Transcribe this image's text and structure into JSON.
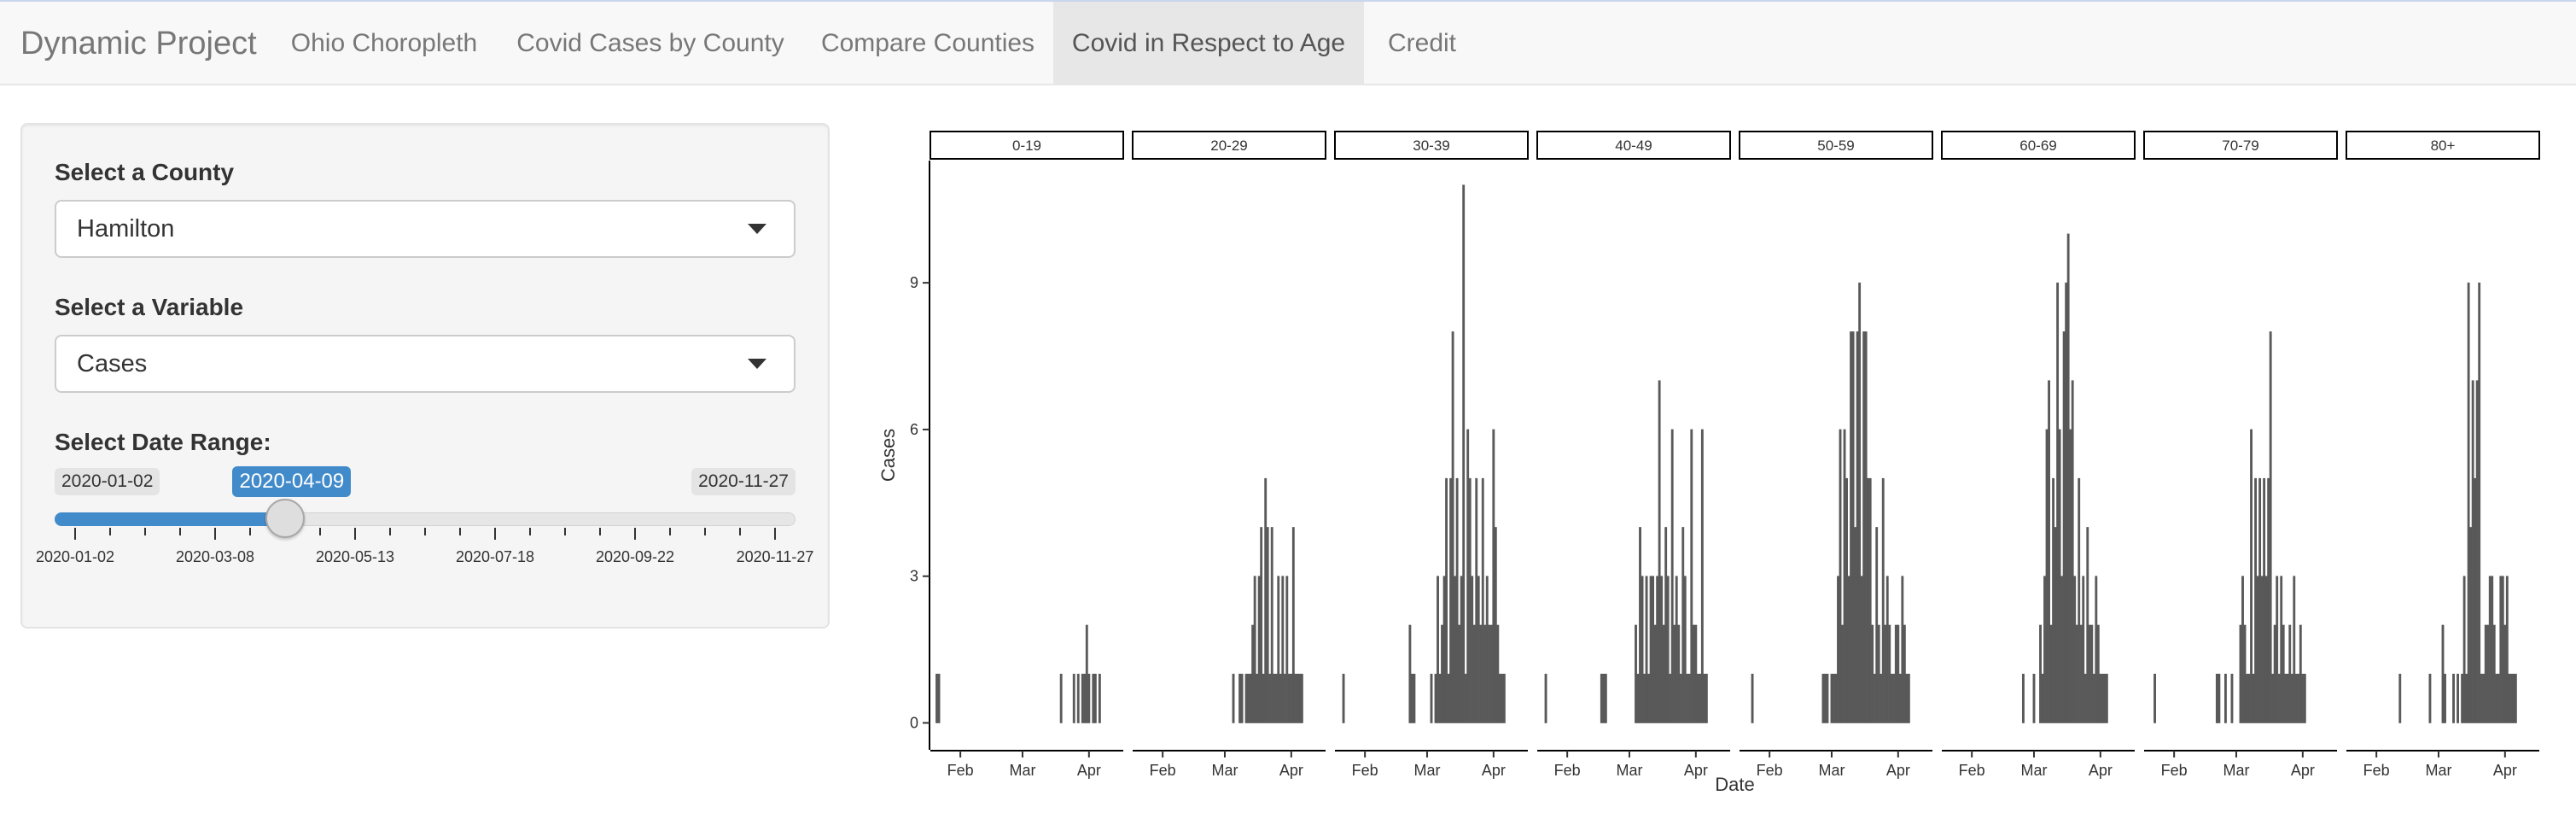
{
  "navbar": {
    "brand": "Dynamic Project",
    "tabs": [
      {
        "label": "Ohio Choropleth",
        "active": false
      },
      {
        "label": "Covid Cases by County",
        "active": false
      },
      {
        "label": "Compare Counties",
        "active": false
      },
      {
        "label": "Covid in Respect to Age",
        "active": true
      },
      {
        "label": "Credit",
        "active": false
      }
    ]
  },
  "sidebar": {
    "county": {
      "label": "Select a County",
      "value": "Hamilton"
    },
    "variable": {
      "label": "Select a Variable",
      "value": "Cases"
    },
    "date_range": {
      "label": "Select Date Range:",
      "min": "2020-01-02",
      "max": "2020-11-27",
      "current": "2020-04-09",
      "current_fraction": 0.3006,
      "grid_labels": [
        "2020-01-02",
        "2020-03-08",
        "2020-05-13",
        "2020-07-18",
        "2020-09-22",
        "2020-11-27"
      ]
    }
  },
  "chart_data": {
    "type": "bar",
    "facet_by": "age group",
    "xlabel": "Date",
    "ylabel": "Cases",
    "x_range": [
      "2020-01-18",
      "2020-04-17"
    ],
    "ylim": [
      -0.55,
      11.5
    ],
    "yticks": [
      0,
      3,
      6,
      9
    ],
    "xticks": [
      {
        "label": "Feb",
        "date": "2020-02-01"
      },
      {
        "label": "Mar",
        "date": "2020-03-01"
      },
      {
        "label": "Apr",
        "date": "2020-04-01"
      }
    ],
    "bar_color": "#595959",
    "facets": [
      {
        "name": "0-19",
        "points": [
          [
            "2020-01-21",
            1
          ],
          [
            "2020-01-22",
            1
          ],
          [
            "2020-03-19",
            1
          ],
          [
            "2020-03-25",
            1
          ],
          [
            "2020-03-27",
            1
          ],
          [
            "2020-03-29",
            1
          ],
          [
            "2020-03-30",
            1
          ],
          [
            "2020-03-31",
            2
          ],
          [
            "2020-04-01",
            1
          ],
          [
            "2020-04-03",
            1
          ],
          [
            "2020-04-04",
            1
          ],
          [
            "2020-04-06",
            1
          ]
        ]
      },
      {
        "name": "20-29",
        "points": [
          [
            "2020-03-05",
            1
          ],
          [
            "2020-03-08",
            1
          ],
          [
            "2020-03-09",
            1
          ],
          [
            "2020-03-11",
            1
          ],
          [
            "2020-03-12",
            1
          ],
          [
            "2020-03-13",
            1
          ],
          [
            "2020-03-14",
            2
          ],
          [
            "2020-03-15",
            3
          ],
          [
            "2020-03-16",
            1
          ],
          [
            "2020-03-17",
            3
          ],
          [
            "2020-03-18",
            4
          ],
          [
            "2020-03-19",
            1
          ],
          [
            "2020-03-20",
            5
          ],
          [
            "2020-03-21",
            4
          ],
          [
            "2020-03-22",
            1
          ],
          [
            "2020-03-23",
            4
          ],
          [
            "2020-03-24",
            1
          ],
          [
            "2020-03-25",
            1
          ],
          [
            "2020-03-26",
            3
          ],
          [
            "2020-03-27",
            1
          ],
          [
            "2020-03-28",
            3
          ],
          [
            "2020-03-29",
            1
          ],
          [
            "2020-03-30",
            3
          ],
          [
            "2020-03-31",
            1
          ],
          [
            "2020-04-01",
            1
          ],
          [
            "2020-04-02",
            4
          ],
          [
            "2020-04-03",
            1
          ],
          [
            "2020-04-04",
            1
          ],
          [
            "2020-04-05",
            1
          ],
          [
            "2020-04-06",
            1
          ]
        ]
      },
      {
        "name": "30-39",
        "points": [
          [
            "2020-01-22",
            1
          ],
          [
            "2020-02-22",
            2
          ],
          [
            "2020-02-23",
            1
          ],
          [
            "2020-02-24",
            1
          ],
          [
            "2020-03-03",
            1
          ],
          [
            "2020-03-05",
            1
          ],
          [
            "2020-03-06",
            3
          ],
          [
            "2020-03-07",
            1
          ],
          [
            "2020-03-08",
            2
          ],
          [
            "2020-03-09",
            3
          ],
          [
            "2020-03-10",
            5
          ],
          [
            "2020-03-11",
            1
          ],
          [
            "2020-03-12",
            5
          ],
          [
            "2020-03-13",
            8
          ],
          [
            "2020-03-14",
            3
          ],
          [
            "2020-03-15",
            5
          ],
          [
            "2020-03-16",
            2
          ],
          [
            "2020-03-17",
            3
          ],
          [
            "2020-03-18",
            11
          ],
          [
            "2020-03-19",
            1
          ],
          [
            "2020-03-20",
            6
          ],
          [
            "2020-03-21",
            5
          ],
          [
            "2020-03-22",
            3
          ],
          [
            "2020-03-23",
            2
          ],
          [
            "2020-03-24",
            5
          ],
          [
            "2020-03-25",
            3
          ],
          [
            "2020-03-26",
            2
          ],
          [
            "2020-03-27",
            5
          ],
          [
            "2020-03-28",
            2
          ],
          [
            "2020-03-29",
            3
          ],
          [
            "2020-03-30",
            2
          ],
          [
            "2020-03-31",
            2
          ],
          [
            "2020-04-01",
            6
          ],
          [
            "2020-04-02",
            4
          ],
          [
            "2020-04-03",
            2
          ],
          [
            "2020-04-04",
            1
          ],
          [
            "2020-04-05",
            1
          ],
          [
            "2020-04-06",
            1
          ]
        ]
      },
      {
        "name": "40-49",
        "points": [
          [
            "2020-01-22",
            1
          ],
          [
            "2020-02-17",
            1
          ],
          [
            "2020-02-18",
            1
          ],
          [
            "2020-02-19",
            1
          ],
          [
            "2020-03-04",
            2
          ],
          [
            "2020-03-05",
            1
          ],
          [
            "2020-03-06",
            4
          ],
          [
            "2020-03-07",
            3
          ],
          [
            "2020-03-08",
            1
          ],
          [
            "2020-03-09",
            3
          ],
          [
            "2020-03-10",
            1
          ],
          [
            "2020-03-11",
            3
          ],
          [
            "2020-03-12",
            3
          ],
          [
            "2020-03-13",
            2
          ],
          [
            "2020-03-14",
            3
          ],
          [
            "2020-03-15",
            7
          ],
          [
            "2020-03-16",
            3
          ],
          [
            "2020-03-17",
            2
          ],
          [
            "2020-03-18",
            4
          ],
          [
            "2020-03-19",
            3
          ],
          [
            "2020-03-20",
            1
          ],
          [
            "2020-03-21",
            6
          ],
          [
            "2020-03-22",
            2
          ],
          [
            "2020-03-23",
            3
          ],
          [
            "2020-03-24",
            2
          ],
          [
            "2020-03-25",
            1
          ],
          [
            "2020-03-26",
            4
          ],
          [
            "2020-03-27",
            3
          ],
          [
            "2020-03-28",
            1
          ],
          [
            "2020-03-29",
            1
          ],
          [
            "2020-03-30",
            6
          ],
          [
            "2020-03-31",
            2
          ],
          [
            "2020-04-01",
            2
          ],
          [
            "2020-04-02",
            1
          ],
          [
            "2020-04-03",
            1
          ],
          [
            "2020-04-04",
            6
          ],
          [
            "2020-04-05",
            1
          ],
          [
            "2020-04-06",
            1
          ]
        ]
      },
      {
        "name": "50-59",
        "points": [
          [
            "2020-01-24",
            1
          ],
          [
            "2020-02-26",
            1
          ],
          [
            "2020-02-27",
            1
          ],
          [
            "2020-02-28",
            1
          ],
          [
            "2020-03-01",
            1
          ],
          [
            "2020-03-02",
            1
          ],
          [
            "2020-03-03",
            1
          ],
          [
            "2020-03-04",
            3
          ],
          [
            "2020-03-05",
            6
          ],
          [
            "2020-03-06",
            2
          ],
          [
            "2020-03-07",
            6
          ],
          [
            "2020-03-08",
            5
          ],
          [
            "2020-03-09",
            3
          ],
          [
            "2020-03-10",
            8
          ],
          [
            "2020-03-11",
            8
          ],
          [
            "2020-03-12",
            4
          ],
          [
            "2020-03-13",
            8
          ],
          [
            "2020-03-14",
            9
          ],
          [
            "2020-03-15",
            3
          ],
          [
            "2020-03-16",
            8
          ],
          [
            "2020-03-17",
            8
          ],
          [
            "2020-03-18",
            5
          ],
          [
            "2020-03-19",
            5
          ],
          [
            "2020-03-20",
            2
          ],
          [
            "2020-03-21",
            1
          ],
          [
            "2020-03-22",
            4
          ],
          [
            "2020-03-23",
            2
          ],
          [
            "2020-03-24",
            1
          ],
          [
            "2020-03-25",
            5
          ],
          [
            "2020-03-26",
            2
          ],
          [
            "2020-03-27",
            3
          ],
          [
            "2020-03-28",
            2
          ],
          [
            "2020-03-29",
            1
          ],
          [
            "2020-03-30",
            1
          ],
          [
            "2020-03-31",
            2
          ],
          [
            "2020-04-01",
            2
          ],
          [
            "2020-04-02",
            1
          ],
          [
            "2020-04-03",
            3
          ],
          [
            "2020-04-04",
            2
          ],
          [
            "2020-04-05",
            1
          ],
          [
            "2020-04-06",
            1
          ]
        ]
      },
      {
        "name": "60-69",
        "points": [
          [
            "2020-02-25",
            1
          ],
          [
            "2020-03-01",
            1
          ],
          [
            "2020-03-04",
            2
          ],
          [
            "2020-03-05",
            1
          ],
          [
            "2020-03-06",
            3
          ],
          [
            "2020-03-07",
            6
          ],
          [
            "2020-03-08",
            7
          ],
          [
            "2020-03-09",
            2
          ],
          [
            "2020-03-10",
            5
          ],
          [
            "2020-03-11",
            4
          ],
          [
            "2020-03-12",
            9
          ],
          [
            "2020-03-13",
            6
          ],
          [
            "2020-03-14",
            3
          ],
          [
            "2020-03-15",
            8
          ],
          [
            "2020-03-16",
            9
          ],
          [
            "2020-03-17",
            10
          ],
          [
            "2020-03-18",
            6
          ],
          [
            "2020-03-19",
            7
          ],
          [
            "2020-03-20",
            3
          ],
          [
            "2020-03-21",
            2
          ],
          [
            "2020-03-22",
            5
          ],
          [
            "2020-03-23",
            2
          ],
          [
            "2020-03-24",
            3
          ],
          [
            "2020-03-25",
            1
          ],
          [
            "2020-03-26",
            4
          ],
          [
            "2020-03-27",
            2
          ],
          [
            "2020-03-28",
            2
          ],
          [
            "2020-03-29",
            1
          ],
          [
            "2020-03-30",
            3
          ],
          [
            "2020-03-31",
            2
          ],
          [
            "2020-04-01",
            1
          ],
          [
            "2020-04-02",
            1
          ],
          [
            "2020-04-03",
            1
          ],
          [
            "2020-04-04",
            1
          ]
        ]
      },
      {
        "name": "70-79",
        "points": [
          [
            "2020-01-23",
            1
          ],
          [
            "2020-02-21",
            1
          ],
          [
            "2020-02-22",
            1
          ],
          [
            "2020-02-25",
            1
          ],
          [
            "2020-02-28",
            1
          ],
          [
            "2020-03-03",
            2
          ],
          [
            "2020-03-04",
            3
          ],
          [
            "2020-03-05",
            2
          ],
          [
            "2020-03-06",
            1
          ],
          [
            "2020-03-07",
            1
          ],
          [
            "2020-03-08",
            6
          ],
          [
            "2020-03-09",
            1
          ],
          [
            "2020-03-10",
            5
          ],
          [
            "2020-03-11",
            3
          ],
          [
            "2020-03-12",
            5
          ],
          [
            "2020-03-13",
            3
          ],
          [
            "2020-03-14",
            5
          ],
          [
            "2020-03-15",
            3
          ],
          [
            "2020-03-16",
            5
          ],
          [
            "2020-03-17",
            8
          ],
          [
            "2020-03-18",
            1
          ],
          [
            "2020-03-19",
            2
          ],
          [
            "2020-03-20",
            3
          ],
          [
            "2020-03-21",
            1
          ],
          [
            "2020-03-22",
            3
          ],
          [
            "2020-03-23",
            2
          ],
          [
            "2020-03-24",
            1
          ],
          [
            "2020-03-25",
            1
          ],
          [
            "2020-03-26",
            2
          ],
          [
            "2020-03-27",
            1
          ],
          [
            "2020-03-28",
            3
          ],
          [
            "2020-03-29",
            1
          ],
          [
            "2020-03-30",
            1
          ],
          [
            "2020-03-31",
            2
          ],
          [
            "2020-04-01",
            1
          ],
          [
            "2020-04-02",
            1
          ]
        ]
      },
      {
        "name": "80+",
        "points": [
          [
            "2020-02-12",
            1
          ],
          [
            "2020-02-26",
            1
          ],
          [
            "2020-03-03",
            2
          ],
          [
            "2020-03-04",
            1
          ],
          [
            "2020-03-08",
            1
          ],
          [
            "2020-03-10",
            1
          ],
          [
            "2020-03-12",
            1
          ],
          [
            "2020-03-13",
            3
          ],
          [
            "2020-03-14",
            1
          ],
          [
            "2020-03-15",
            9
          ],
          [
            "2020-03-16",
            4
          ],
          [
            "2020-03-17",
            7
          ],
          [
            "2020-03-18",
            5
          ],
          [
            "2020-03-19",
            7
          ],
          [
            "2020-03-20",
            9
          ],
          [
            "2020-03-21",
            1
          ],
          [
            "2020-03-22",
            1
          ],
          [
            "2020-03-23",
            2
          ],
          [
            "2020-03-24",
            2
          ],
          [
            "2020-03-25",
            3
          ],
          [
            "2020-03-26",
            3
          ],
          [
            "2020-03-27",
            2
          ],
          [
            "2020-03-28",
            1
          ],
          [
            "2020-03-29",
            1
          ],
          [
            "2020-03-30",
            3
          ],
          [
            "2020-03-31",
            3
          ],
          [
            "2020-04-01",
            2
          ],
          [
            "2020-04-02",
            3
          ],
          [
            "2020-04-03",
            1
          ],
          [
            "2020-04-04",
            1
          ],
          [
            "2020-04-05",
            1
          ],
          [
            "2020-04-06",
            1
          ]
        ]
      }
    ]
  }
}
